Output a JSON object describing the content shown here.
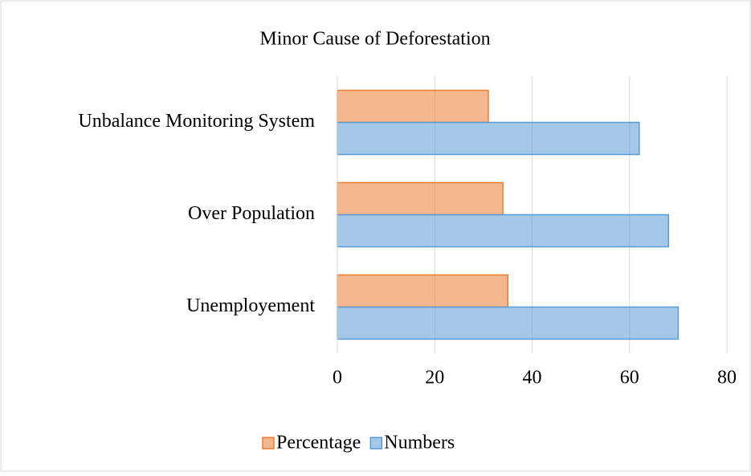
{
  "chart_data": {
    "type": "barh",
    "title": "Minor Cause of Deforestation",
    "categories": [
      "Unemployement",
      "Over Population",
      "Unbalance Monitoring System"
    ],
    "series": [
      {
        "name": "Percentage",
        "color": "#ed7d31",
        "values": [
          35,
          34,
          31
        ]
      },
      {
        "name": "Numbers",
        "color": "#5b9bd5",
        "values": [
          70,
          68,
          62
        ]
      }
    ],
    "xlim": [
      0,
      80
    ],
    "xticks": [
      0,
      20,
      40,
      60,
      80
    ],
    "grid": true,
    "legend": "bottom"
  }
}
